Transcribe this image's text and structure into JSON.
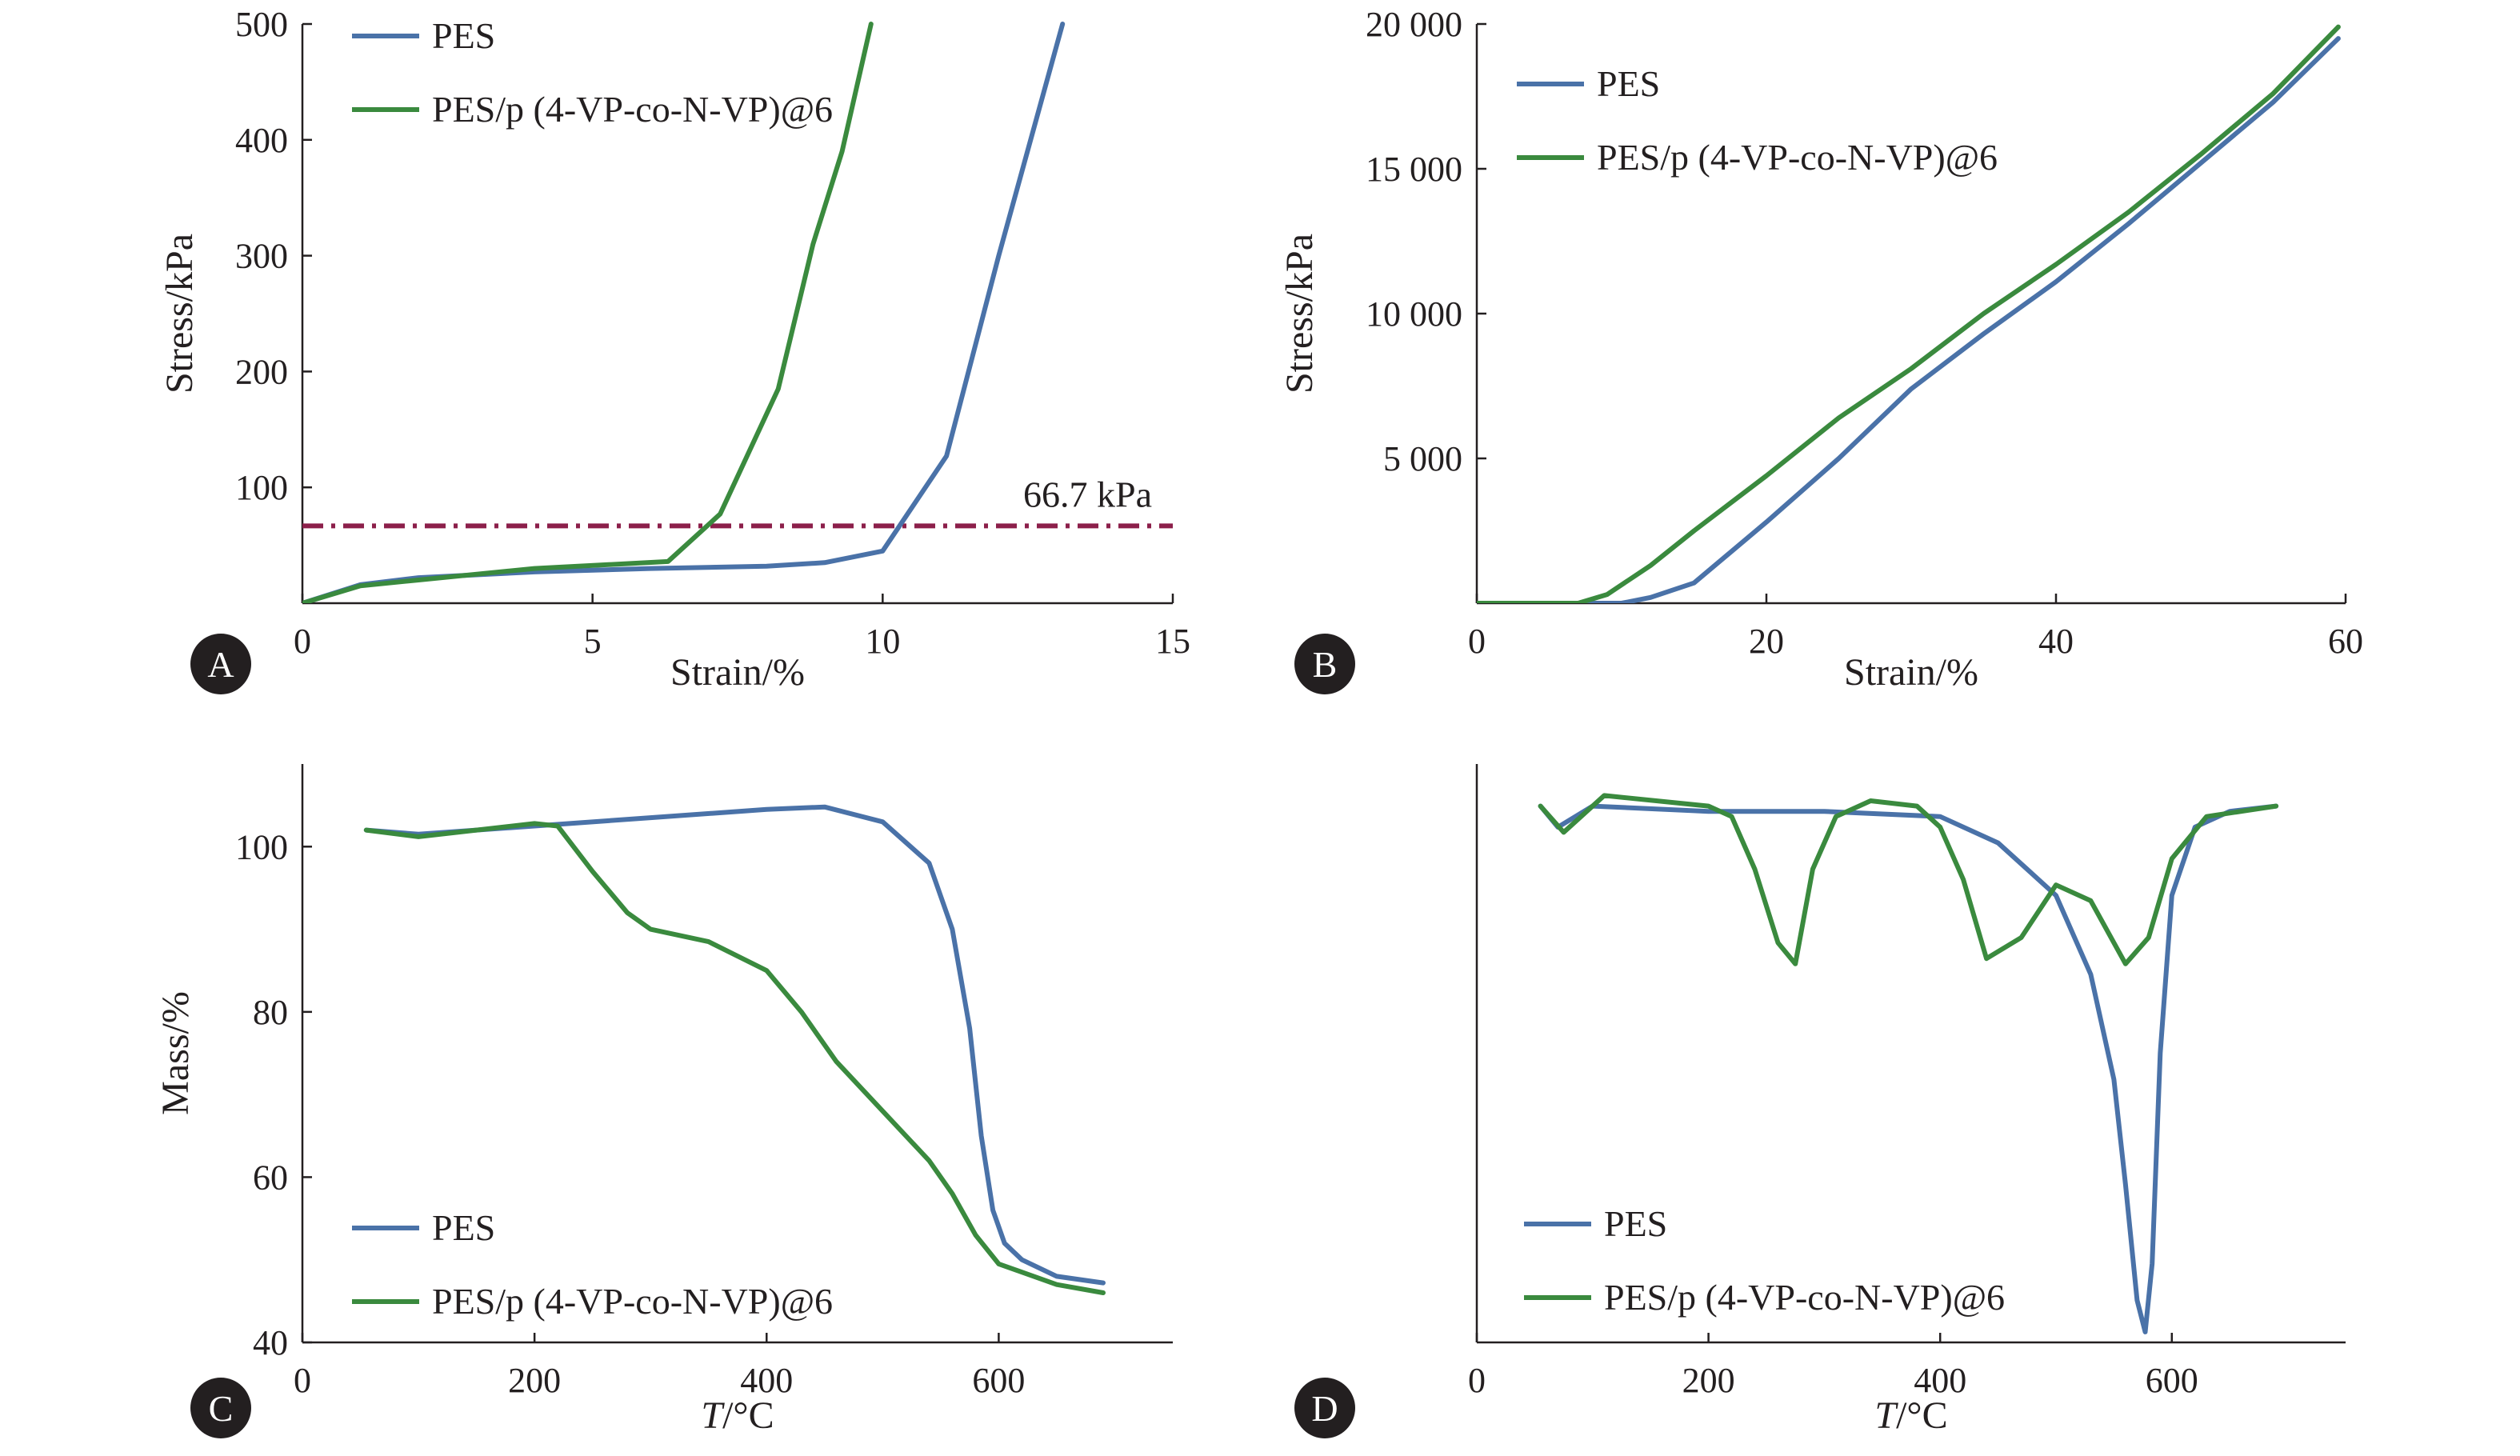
{
  "colors": {
    "pes": "#4a72a8",
    "composite": "#3a8a3e",
    "threshold": "#8c1f4a",
    "axis": "#231f20",
    "badge": "#231f20"
  },
  "chart_data": [
    {
      "panel": "A",
      "type": "line",
      "xlabel": "Strain/%",
      "ylabel": "Stress/kPa",
      "xlim": [
        0,
        15
      ],
      "ylim": [
        0,
        500
      ],
      "xticks": [
        "0",
        "5",
        "10",
        "15"
      ],
      "xtick_values": [
        0,
        5,
        10,
        15
      ],
      "yticks": [
        "100",
        "200",
        "300",
        "400",
        "500"
      ],
      "ytick_values": [
        100,
        200,
        300,
        400,
        500
      ],
      "legend_position": "top-left",
      "annotation": {
        "text": "66.7 kPa",
        "y": 66.7
      },
      "series": [
        {
          "name": "PES",
          "color_key": "pes",
          "x": [
            0,
            1,
            2,
            4,
            6,
            8,
            9,
            10,
            11.1,
            12,
            13.1
          ],
          "y": [
            0,
            16,
            22,
            27,
            30,
            32,
            35,
            45,
            127,
            300,
            500
          ]
        },
        {
          "name": "PES/p (4-VP-co-N-VP)@6",
          "color_key": "composite",
          "x": [
            0,
            1,
            2,
            4,
            6.3,
            7.2,
            8.2,
            8.8,
            9.3,
            9.8
          ],
          "y": [
            0,
            15,
            20,
            30,
            36,
            77,
            185,
            310,
            390,
            500
          ]
        }
      ]
    },
    {
      "panel": "B",
      "type": "line",
      "xlabel": "Strain/%",
      "ylabel": "Stress/kPa",
      "xlim": [
        0,
        60
      ],
      "ylim": [
        0,
        20000
      ],
      "xticks": [
        "0",
        "20",
        "40",
        "60"
      ],
      "xtick_values": [
        0,
        20,
        40,
        60
      ],
      "yticks": [
        "5 000",
        "10 000",
        "15 000",
        "20 000"
      ],
      "ytick_values": [
        5000,
        10000,
        15000,
        20000
      ],
      "legend_position": "top-left",
      "series": [
        {
          "name": "PES",
          "color_key": "pes",
          "x": [
            0,
            5,
            10,
            12,
            15,
            20,
            25,
            30,
            35,
            40,
            45,
            50,
            55,
            59.5
          ],
          "y": [
            0,
            0,
            0,
            200,
            700,
            2800,
            5000,
            7400,
            9300,
            11100,
            13100,
            15200,
            17300,
            19500
          ]
        },
        {
          "name": "PES/p (4-VP-co-N-VP)@6",
          "color_key": "composite",
          "x": [
            0,
            7,
            9,
            12,
            15,
            20,
            25,
            30,
            35,
            40,
            45,
            50,
            55,
            59.5
          ],
          "y": [
            0,
            0,
            300,
            1300,
            2500,
            4400,
            6400,
            8100,
            10000,
            11700,
            13500,
            15500,
            17600,
            19900
          ]
        }
      ]
    },
    {
      "panel": "C",
      "type": "line",
      "xlabel_italic": "T",
      "xlabel": "/°C",
      "ylabel": "Mass/%",
      "xlim": [
        0,
        750
      ],
      "ylim": [
        40,
        110
      ],
      "xticks": [
        "0",
        "200",
        "400",
        "600"
      ],
      "xtick_values": [
        0,
        200,
        400,
        600
      ],
      "yticks": [
        "40",
        "60",
        "80",
        "100"
      ],
      "ytick_values": [
        40,
        60,
        80,
        100
      ],
      "legend_position": "bottom-left",
      "series": [
        {
          "name": "PES",
          "color_key": "pes",
          "x": [
            55,
            100,
            200,
            300,
            400,
            450,
            500,
            540,
            560,
            575,
            585,
            595,
            605,
            620,
            650,
            690
          ],
          "y": [
            102,
            101.5,
            102.5,
            103.5,
            104.5,
            104.8,
            103,
            98,
            90,
            78,
            65,
            56,
            52,
            50,
            48,
            47.2
          ]
        },
        {
          "name": "PES/p (4-VP-co-N-VP)@6",
          "color_key": "composite",
          "x": [
            55,
            100,
            150,
            200,
            220,
            250,
            280,
            300,
            350,
            400,
            430,
            460,
            500,
            540,
            560,
            580,
            600,
            650,
            690
          ],
          "y": [
            102,
            101.2,
            102,
            102.8,
            102.5,
            97,
            92,
            90,
            88.5,
            85,
            80,
            74,
            68,
            62,
            58,
            53,
            49.5,
            47,
            46
          ]
        }
      ]
    },
    {
      "panel": "D",
      "type": "line",
      "xlabel_italic": "T",
      "xlabel": "/°C",
      "ylabel": "",
      "xlim": [
        0,
        750
      ],
      "ylim": [
        -10,
        1
      ],
      "xticks": [
        "0",
        "200",
        "400",
        "600"
      ],
      "xtick_values": [
        0,
        200,
        400,
        600
      ],
      "yticks": [],
      "legend_position": "bottom-left",
      "series": [
        {
          "name": "PES",
          "color_key": "pes",
          "x": [
            55,
            70,
            100,
            200,
            300,
            400,
            450,
            500,
            530,
            550,
            560,
            570,
            577,
            583,
            590,
            600,
            620,
            650,
            690
          ],
          "y": [
            0.2,
            -0.2,
            0.2,
            0.1,
            0.1,
            0,
            -0.5,
            -1.5,
            -3,
            -5,
            -7,
            -9.2,
            -9.8,
            -8.5,
            -4.5,
            -1.5,
            -0.2,
            0.1,
            0.2
          ]
        },
        {
          "name": "PES/p (4-VP-co-N-VP)@6",
          "color_key": "composite",
          "x": [
            55,
            75,
            110,
            200,
            220,
            240,
            260,
            275,
            290,
            310,
            340,
            380,
            400,
            420,
            440,
            470,
            500,
            530,
            560,
            580,
            600,
            630,
            690
          ],
          "y": [
            0.2,
            -0.3,
            0.4,
            0.2,
            0,
            -1,
            -2.4,
            -2.8,
            -1,
            0,
            0.3,
            0.2,
            -0.2,
            -1.2,
            -2.7,
            -2.3,
            -1.3,
            -1.6,
            -2.8,
            -2.3,
            -0.8,
            0,
            0.2
          ]
        }
      ]
    }
  ]
}
